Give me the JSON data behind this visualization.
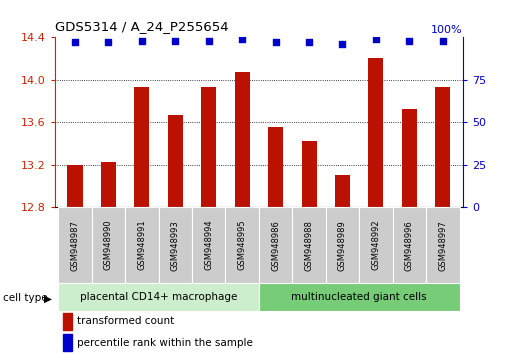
{
  "title": "GDS5314 / A_24_P255654",
  "samples": [
    "GSM948987",
    "GSM948990",
    "GSM948991",
    "GSM948993",
    "GSM948994",
    "GSM948995",
    "GSM948986",
    "GSM948988",
    "GSM948989",
    "GSM948992",
    "GSM948996",
    "GSM948997"
  ],
  "bar_values": [
    13.2,
    13.22,
    13.93,
    13.67,
    13.93,
    14.07,
    13.55,
    13.42,
    13.1,
    14.2,
    13.72,
    13.93
  ],
  "percentile_values": [
    97,
    97,
    98,
    98,
    98,
    99,
    97,
    97,
    96,
    99,
    98,
    98
  ],
  "group1_label": "placental CD14+ macrophage",
  "group2_label": "multinucleated giant cells",
  "group1_count": 6,
  "group2_count": 6,
  "bar_color": "#bb1100",
  "dot_color": "#0000cc",
  "group1_bg": "#cceecc",
  "group2_bg": "#77cc77",
  "sample_bg": "#cccccc",
  "ymin": 12.8,
  "ymax": 14.4,
  "ylim_left": [
    12.8,
    14.4
  ],
  "ylim_right": [
    0,
    100
  ],
  "yticks_left": [
    12.8,
    13.2,
    13.6,
    14.0,
    14.4
  ],
  "yticks_right": [
    0,
    25,
    50,
    75
  ],
  "grid_values": [
    13.2,
    13.6,
    14.0
  ],
  "legend_red": "transformed count",
  "legend_blue": "percentile rank within the sample"
}
